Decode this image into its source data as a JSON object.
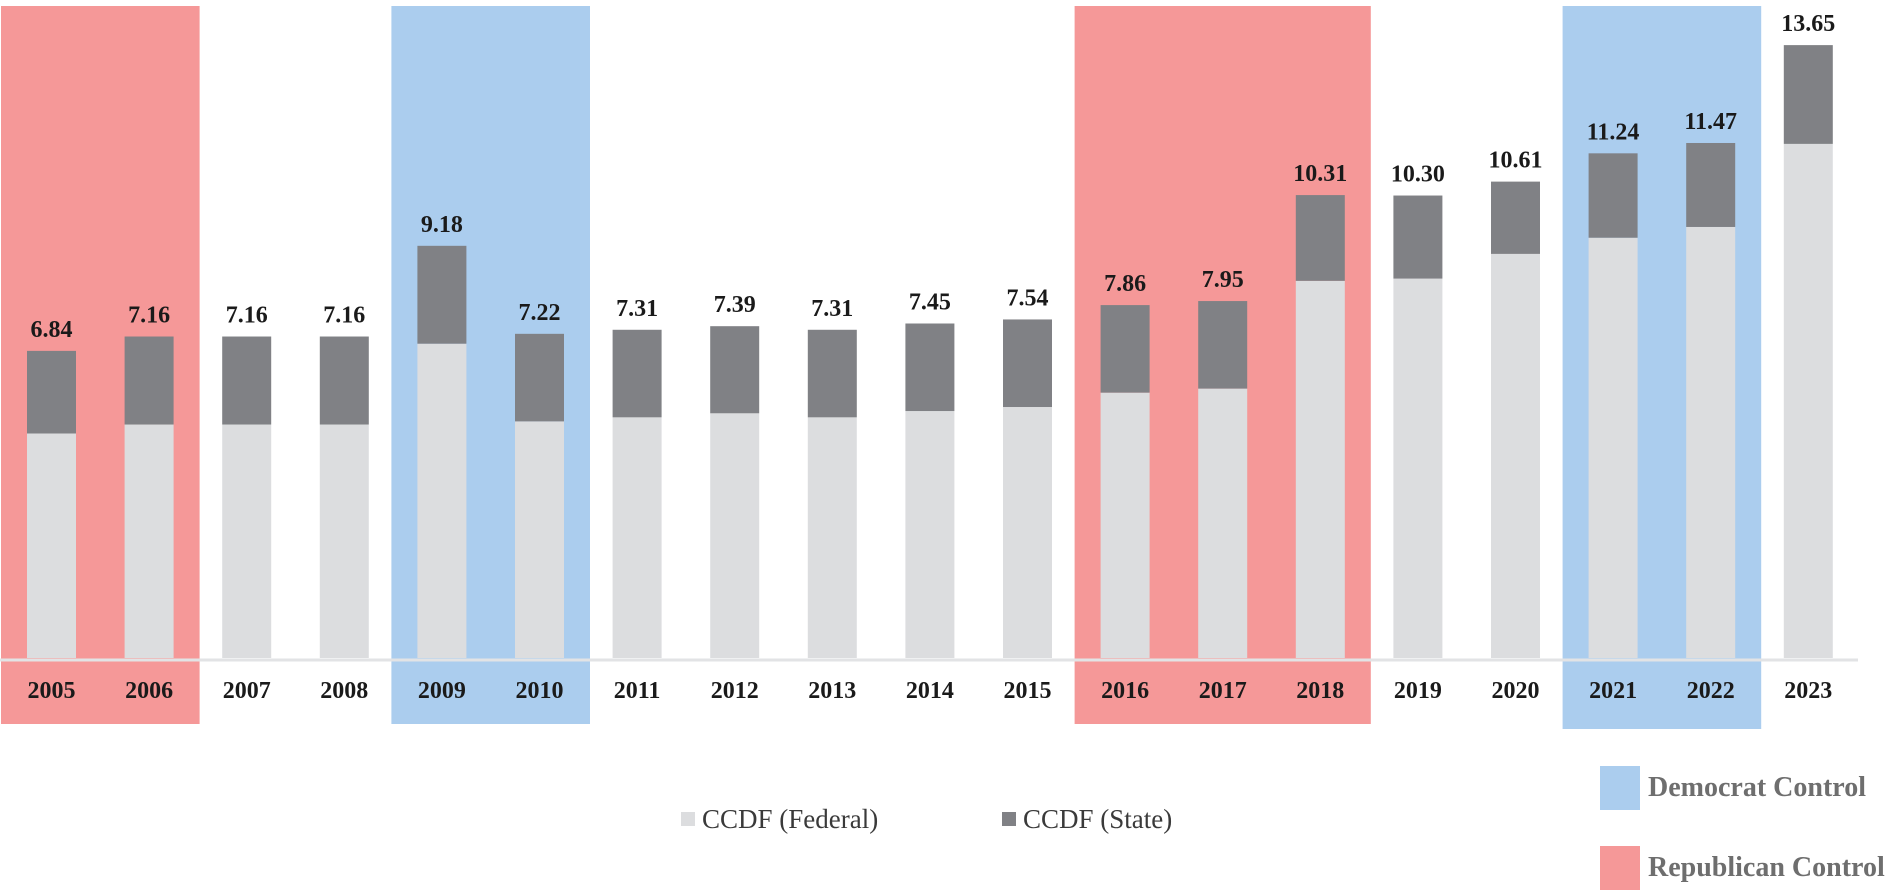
{
  "chart_data": {
    "type": "bar",
    "stacked": true,
    "categories": [
      "2005",
      "2006",
      "2007",
      "2008",
      "2009",
      "2010",
      "2011",
      "2012",
      "2013",
      "2014",
      "2015",
      "2016",
      "2017",
      "2018",
      "2019",
      "2020",
      "2021",
      "2022",
      "2023"
    ],
    "series": [
      {
        "name": "CCDF (Federal)",
        "color": "#dcdddf",
        "values": [
          5.0,
          5.2,
          5.2,
          5.2,
          7.0,
          5.27,
          5.36,
          5.45,
          5.36,
          5.5,
          5.59,
          5.91,
          6.0,
          8.4,
          8.45,
          9.0,
          9.36,
          9.6,
          11.45
        ]
      },
      {
        "name": "CCDF (State)",
        "color": "#808185",
        "values": [
          1.84,
          1.96,
          1.96,
          1.96,
          2.18,
          1.95,
          1.95,
          1.94,
          1.95,
          1.95,
          1.95,
          1.95,
          1.95,
          1.91,
          1.85,
          1.61,
          1.88,
          1.87,
          2.2
        ]
      }
    ],
    "totals": [
      "6.84",
      "7.16",
      "7.16",
      "7.16",
      "9.18",
      "7.22",
      "7.31",
      "7.39",
      "7.31",
      "7.45",
      "7.54",
      "7.86",
      "7.95",
      "10.31",
      "10.30",
      "10.61",
      "11.24",
      "11.47",
      "13.65"
    ],
    "shaded_periods": [
      {
        "party": "republican",
        "from": "2005",
        "to": "2006"
      },
      {
        "party": "democrat",
        "from": "2009",
        "to": "2010"
      },
      {
        "party": "republican",
        "from": "2016",
        "to": "2018"
      },
      {
        "party": "democrat",
        "from": "2021",
        "to": "2022"
      }
    ],
    "legend": {
      "series": [
        "CCDF (Federal)",
        "CCDF (State)"
      ],
      "parties": [
        {
          "key": "democrat",
          "label": "Democrat Control",
          "color": "#abcdee"
        },
        {
          "key": "republican",
          "label": "Republican Control",
          "color": "#f59898"
        }
      ]
    },
    "ylim": [
      0,
      14
    ],
    "title": "",
    "xlabel": "",
    "ylabel": ""
  }
}
